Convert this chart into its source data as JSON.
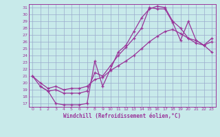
{
  "xlabel": "Windchill (Refroidissement éolien,°C)",
  "bg_color": "#c8eaea",
  "grid_color": "#99aacc",
  "line_color": "#993399",
  "xlim": [
    -0.5,
    23.5
  ],
  "ylim": [
    16.5,
    31.5
  ],
  "xticks": [
    0,
    1,
    2,
    3,
    4,
    5,
    6,
    7,
    8,
    9,
    10,
    11,
    12,
    13,
    14,
    15,
    16,
    17,
    18,
    19,
    20,
    21,
    22,
    23
  ],
  "yticks": [
    17,
    18,
    19,
    20,
    21,
    22,
    23,
    24,
    25,
    26,
    27,
    28,
    29,
    30,
    31
  ],
  "line1_x": [
    1,
    2,
    3,
    4,
    5,
    6,
    7,
    8,
    9,
    10,
    11,
    12,
    13,
    14,
    15,
    16,
    17,
    18,
    19,
    20,
    21,
    22,
    23
  ],
  "line1_y": [
    19.5,
    18.8,
    17.0,
    16.8,
    16.8,
    16.8,
    17.0,
    23.2,
    19.5,
    22.0,
    24.5,
    25.5,
    27.5,
    29.5,
    30.8,
    31.2,
    31.0,
    29.0,
    28.0,
    26.5,
    26.2,
    25.5,
    26.0
  ],
  "line2_x": [
    0,
    1,
    2,
    3,
    4,
    5,
    6,
    7,
    8,
    9,
    10,
    11,
    12,
    13,
    14,
    15,
    16,
    17,
    18,
    19,
    20,
    21,
    22,
    23
  ],
  "line2_y": [
    21.0,
    19.5,
    18.8,
    19.0,
    18.5,
    18.5,
    18.5,
    18.8,
    21.5,
    21.0,
    22.5,
    24.0,
    25.2,
    26.5,
    28.0,
    31.0,
    30.8,
    30.8,
    28.8,
    26.2,
    29.0,
    26.2,
    25.5,
    26.5
  ],
  "line3_x": [
    0,
    1,
    2,
    3,
    4,
    5,
    6,
    7,
    8,
    9,
    10,
    11,
    12,
    13,
    14,
    15,
    16,
    17,
    18,
    19,
    20,
    21,
    22,
    23
  ],
  "line3_y": [
    21.0,
    20.0,
    19.2,
    19.5,
    19.0,
    19.2,
    19.2,
    19.5,
    20.5,
    20.8,
    21.8,
    22.5,
    23.2,
    24.0,
    25.0,
    26.0,
    26.8,
    27.5,
    27.8,
    27.2,
    26.5,
    25.8,
    25.5,
    24.5
  ]
}
